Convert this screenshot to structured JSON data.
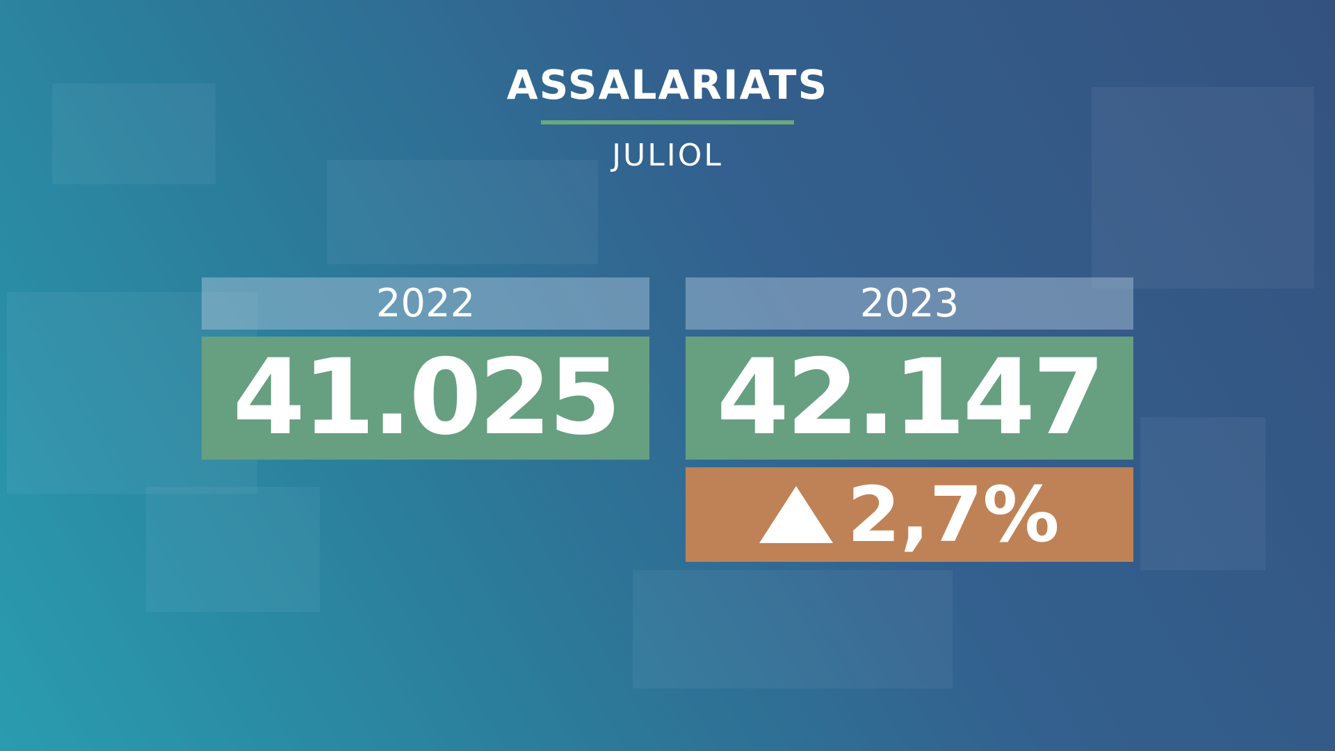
{
  "header": {
    "title": "ASSALARIATS",
    "subtitle": "JULIOL"
  },
  "cards": [
    {
      "year": "2022",
      "value": "41.025"
    },
    {
      "year": "2023",
      "value": "42.147",
      "change": "2,7%"
    }
  ]
}
